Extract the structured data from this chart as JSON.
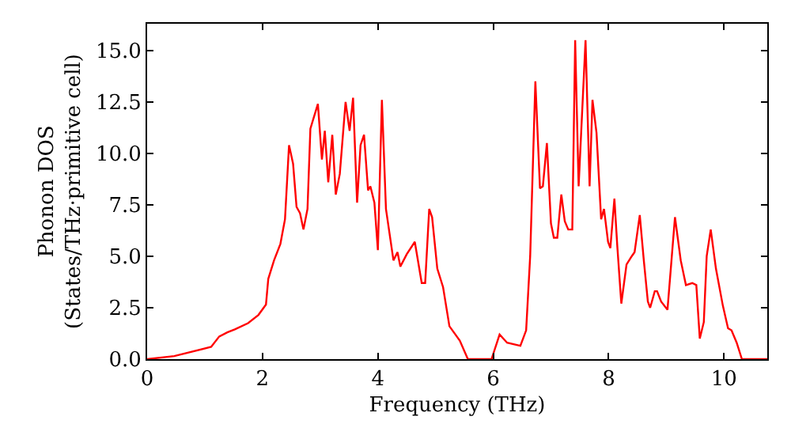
{
  "chart_data": {
    "type": "line",
    "xlabel": "Frequency (THz)",
    "ylabel": "Phonon DOS\n(States/THz·primitive cell)",
    "x": [
      0,
      0.47,
      1.11,
      1.25,
      1.39,
      1.52,
      1.75,
      1.93,
      2.06,
      2.1,
      2.2,
      2.31,
      2.39,
      2.46,
      2.53,
      2.59,
      2.65,
      2.71,
      2.78,
      2.83,
      2.96,
      3.03,
      3.08,
      3.14,
      3.21,
      3.27,
      3.34,
      3.44,
      3.51,
      3.57,
      3.64,
      3.7,
      3.76,
      3.83,
      3.87,
      3.94,
      4.0,
      4.07,
      4.14,
      4.27,
      4.34,
      4.39,
      4.5,
      4.64,
      4.76,
      4.82,
      4.89,
      4.94,
      5.03,
      5.13,
      5.24,
      5.42,
      5.56,
      5.97,
      6.11,
      6.24,
      6.47,
      6.57,
      6.64,
      6.73,
      6.81,
      6.86,
      6.93,
      7.0,
      7.05,
      7.11,
      7.18,
      7.24,
      7.3,
      7.37,
      7.42,
      7.48,
      7.6,
      7.67,
      7.72,
      7.79,
      7.87,
      7.92,
      7.99,
      8.03,
      8.1,
      8.15,
      8.22,
      8.31,
      8.4,
      8.45,
      8.54,
      8.61,
      8.68,
      8.72,
      8.8,
      8.84,
      8.91,
      9.02,
      9.15,
      9.25,
      9.34,
      9.45,
      9.52,
      9.58,
      9.65,
      9.7,
      9.77,
      9.86,
      9.98,
      10.07,
      10.13,
      10.22,
      10.31,
      10.75
    ],
    "series": [
      {
        "color": "#ff0000",
        "values": [
          0,
          0.15,
          0.6,
          1.1,
          1.3,
          1.45,
          1.75,
          2.15,
          2.65,
          3.9,
          4.8,
          5.6,
          6.8,
          10.4,
          9.5,
          7.4,
          7.1,
          6.3,
          7.3,
          11.2,
          12.4,
          9.7,
          11.1,
          8.6,
          10.9,
          8.0,
          9.0,
          12.5,
          11.1,
          12.7,
          7.6,
          10.4,
          10.9,
          8.2,
          8.4,
          7.6,
          5.3,
          12.6,
          7.3,
          4.8,
          5.2,
          4.5,
          5.1,
          5.7,
          3.7,
          3.7,
          7.3,
          6.9,
          4.4,
          3.5,
          1.6,
          0.9,
          0,
          0,
          1.2,
          0.8,
          0.65,
          1.4,
          5.0,
          13.5,
          8.3,
          8.4,
          10.5,
          6.6,
          5.9,
          5.9,
          8.0,
          6.7,
          6.3,
          6.3,
          15.5,
          8.4,
          15.5,
          8.4,
          12.6,
          11.0,
          6.8,
          7.3,
          5.7,
          5.4,
          7.8,
          5.5,
          2.7,
          4.6,
          5.0,
          5.2,
          7.0,
          4.8,
          2.8,
          2.5,
          3.3,
          3.3,
          2.8,
          2.4,
          6.9,
          4.8,
          3.6,
          3.7,
          3.6,
          1.0,
          1.8,
          5.0,
          6.3,
          4.4,
          2.6,
          1.5,
          1.4,
          0.8,
          0,
          0
        ]
      }
    ],
    "xlim": [
      0,
      10.75
    ],
    "xticks": [
      0,
      2,
      4,
      6,
      8,
      10
    ],
    "ylim": [
      0,
      16.3
    ],
    "yticks": [
      {
        "value": 0,
        "label": "0.0"
      },
      {
        "value": 2.5,
        "label": "2.5"
      },
      {
        "value": 5,
        "label": "5.0"
      },
      {
        "value": 7.5,
        "label": "7.5"
      },
      {
        "value": 10,
        "label": "10.0"
      },
      {
        "value": 12.5,
        "label": "12.5"
      },
      {
        "value": 15,
        "label": "15.0"
      }
    ],
    "marker": "none",
    "line_style": "solid"
  }
}
